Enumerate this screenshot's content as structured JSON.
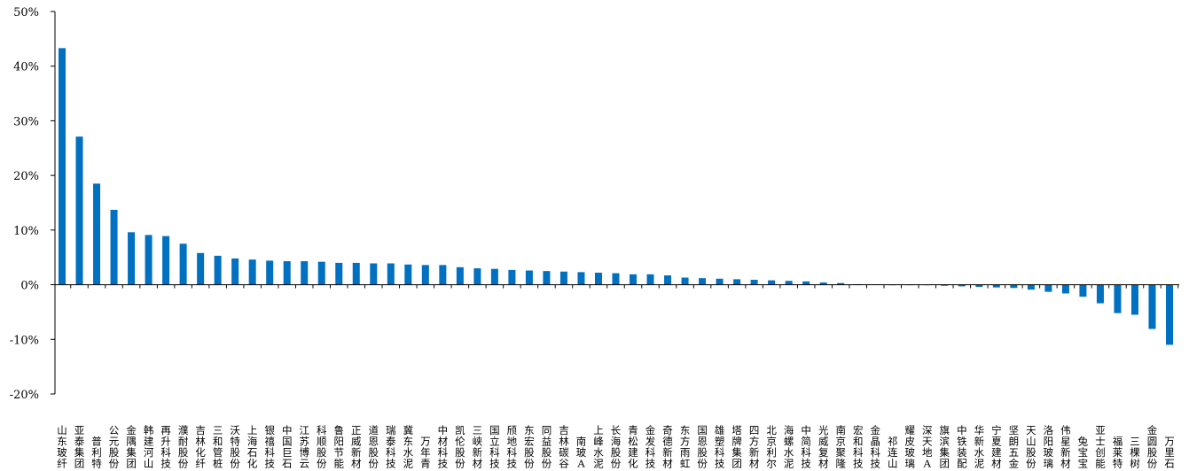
{
  "chart_data": {
    "type": "bar",
    "ylim": [
      -0.2,
      0.5
    ],
    "yticks": [
      {
        "value": 0.5,
        "label": "50%"
      },
      {
        "value": 0.4,
        "label": "40%"
      },
      {
        "value": 0.3,
        "label": "30%"
      },
      {
        "value": 0.2,
        "label": "20%"
      },
      {
        "value": 0.1,
        "label": "10%"
      },
      {
        "value": 0.0,
        "label": "0%"
      },
      {
        "value": -0.1,
        "label": "-10%"
      },
      {
        "value": -0.2,
        "label": "-20%"
      }
    ],
    "grid": false,
    "legend": "none",
    "bar_color": "#0070C0",
    "categories": [
      "山东玻纤",
      "亚泰集团",
      "普利特",
      "公元股份",
      "金隅集团",
      "韩建河山",
      "再升科技",
      "濮耐股份",
      "吉林化纤",
      "三和管桩",
      "沃特股份",
      "上海石化",
      "银禧科技",
      "中国巨石",
      "江苏博云",
      "科顺股份",
      "鲁阳节能",
      "正威新材",
      "道恩股份",
      "瑞泰科技",
      "冀东水泥",
      "万年青",
      "中材科技",
      "凯伦股份",
      "三峡新材",
      "国立科技",
      "颀地科技",
      "东宏股份",
      "同益股份",
      "吉林碳谷",
      "南玻A",
      "上峰水泥",
      "长海股份",
      "青松建化",
      "金发科技",
      "奇德新材",
      "东方雨虹",
      "国恩股份",
      "雄塑科技",
      "塔牌集团",
      "四方新材",
      "北京利尔",
      "海螺水泥",
      "中简科技",
      "光威复材",
      "南京聚隆",
      "宏和科技",
      "金晶科技",
      "祁连山",
      "耀皮玻璃",
      "深天地A",
      "旗滨集团",
      "中铁装配",
      "华新水泥",
      "宁夏建材",
      "坚朗五金",
      "天山股份",
      "洛阳玻璃",
      "伟星新材",
      "兔宝宝",
      "亚士创能",
      "福莱特",
      "三棵树",
      "金圆股份",
      "万里石"
    ],
    "values": [
      0.433,
      0.271,
      0.185,
      0.137,
      0.096,
      0.091,
      0.089,
      0.075,
      0.058,
      0.053,
      0.048,
      0.046,
      0.044,
      0.043,
      0.043,
      0.042,
      0.04,
      0.04,
      0.039,
      0.039,
      0.037,
      0.036,
      0.036,
      0.032,
      0.03,
      0.029,
      0.027,
      0.026,
      0.025,
      0.024,
      0.023,
      0.022,
      0.021,
      0.019,
      0.019,
      0.017,
      0.013,
      0.012,
      0.011,
      0.01,
      0.009,
      0.008,
      0.007,
      0.006,
      0.004,
      0.003,
      0.001,
      0.0005,
      0.0,
      -0.0005,
      -0.001,
      -0.002,
      -0.003,
      -0.004,
      -0.005,
      -0.006,
      -0.009,
      -0.013,
      -0.016,
      -0.022,
      -0.034,
      -0.052,
      -0.055,
      -0.081,
      -0.11
    ]
  }
}
